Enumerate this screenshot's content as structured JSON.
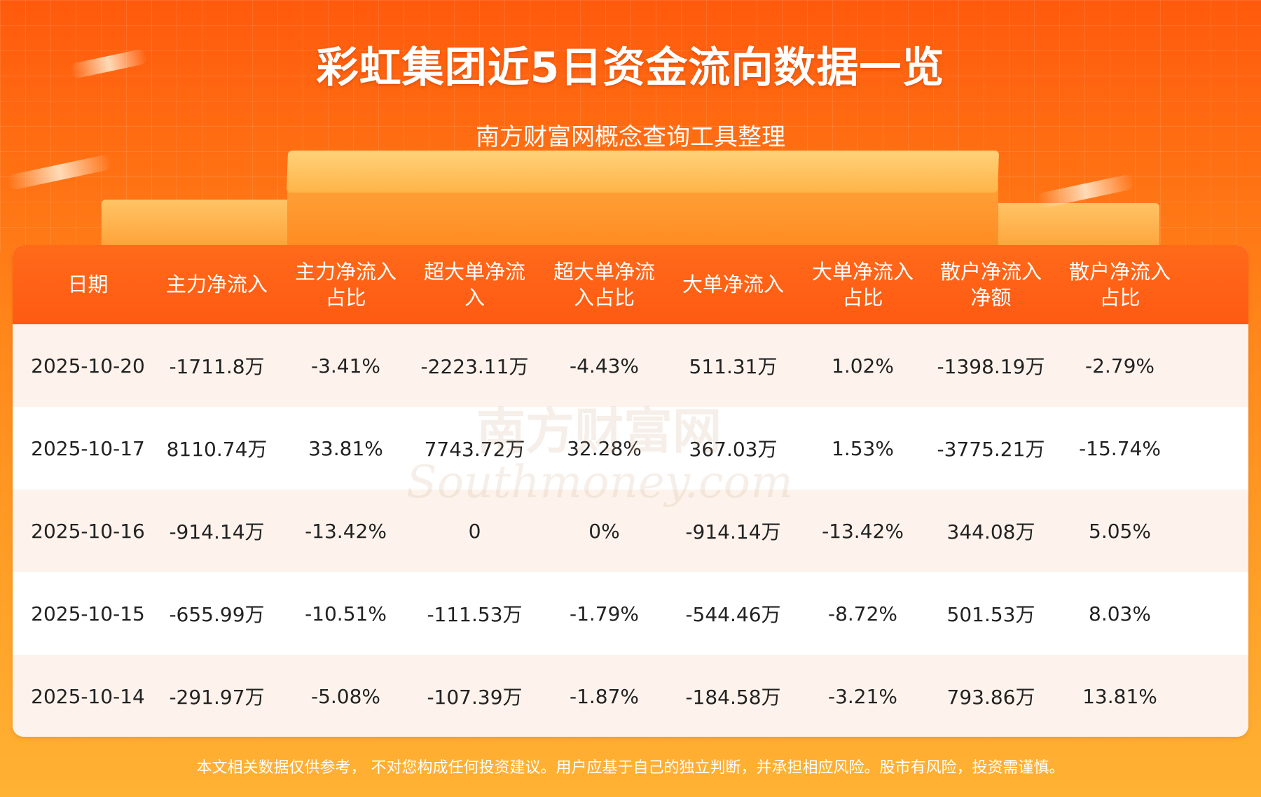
{
  "title": "彩虹集团近5日资金流向数据一览",
  "subtitle": "南方财富网概念查询工具整理",
  "watermark": {
    "cn": "南方财富网",
    "en": "Southmoney.com"
  },
  "disclaimer": "本文相关数据仅供参考， 不对您构成任何投资建议。用户应基于自己的独立判断，并承担相应风险。股市有风险，投资需谨慎。",
  "colors": {
    "header_bg": "#ff5a12",
    "accent": "#ff6a1a",
    "row_alt": "#fdf3ec"
  },
  "chart_data": {
    "type": "table",
    "columns": [
      [
        "日期"
      ],
      [
        "主力净流入"
      ],
      [
        "主力净流入",
        "占比"
      ],
      [
        "超大单净流",
        "入"
      ],
      [
        "超大单净流",
        "入占比"
      ],
      [
        "大单净流入"
      ],
      [
        "大单净流入",
        "占比"
      ],
      [
        "散户净流入",
        "净额"
      ],
      [
        "散户净流入",
        "占比"
      ]
    ],
    "rows": [
      [
        "2025-10-20",
        "-1711.8万",
        "-3.41%",
        "-2223.11万",
        "-4.43%",
        "511.31万",
        "1.02%",
        "-1398.19万",
        "-2.79%"
      ],
      [
        "2025-10-17",
        "8110.74万",
        "33.81%",
        "7743.72万",
        "32.28%",
        "367.03万",
        "1.53%",
        "-3775.21万",
        "-15.74%"
      ],
      [
        "2025-10-16",
        "-914.14万",
        "-13.42%",
        "0",
        "0%",
        "-914.14万",
        "-13.42%",
        "344.08万",
        "5.05%"
      ],
      [
        "2025-10-15",
        "-655.99万",
        "-10.51%",
        "-111.53万",
        "-1.79%",
        "-544.46万",
        "-8.72%",
        "501.53万",
        "8.03%"
      ],
      [
        "2025-10-14",
        "-291.97万",
        "-5.08%",
        "-107.39万",
        "-1.87%",
        "-184.58万",
        "-3.21%",
        "793.86万",
        "13.81%"
      ]
    ]
  }
}
